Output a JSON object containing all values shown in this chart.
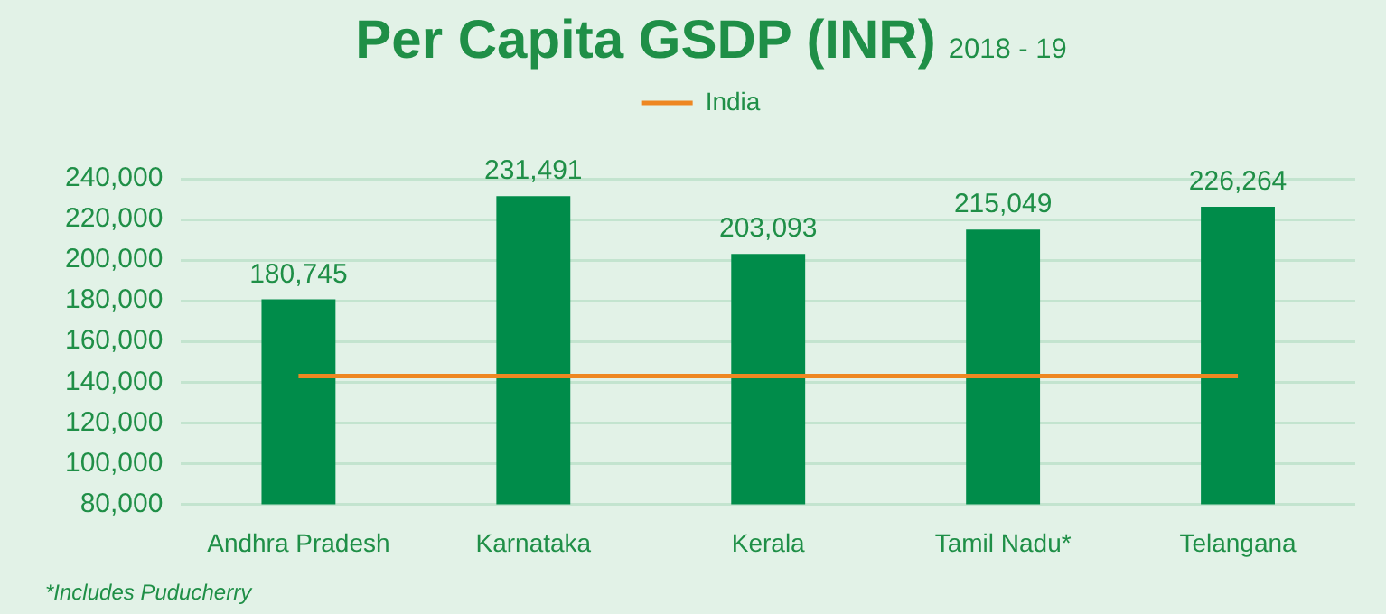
{
  "chart_data": {
    "type": "bar",
    "title": "Per Capita GSDP (INR)",
    "subtitle": "2018 - 19",
    "categories": [
      "Andhra Pradesh",
      "Karnataka",
      "Kerala",
      "Tamil Nadu*",
      "Telangana"
    ],
    "series": [
      {
        "color": "#008c4a",
        "values": [
          180745,
          231491,
          203093,
          215049,
          226264
        ],
        "value_labels": [
          "180,745",
          "231,491",
          "203,093",
          "215,049",
          "226,264"
        ]
      },
      {
        "type": "line",
        "name": "India",
        "color": "#ee8722",
        "values": [
          143000,
          143000,
          143000,
          143000,
          143000
        ]
      }
    ],
    "ylim": [
      80000,
      240000
    ],
    "yticks": [
      {
        "value": 80000,
        "label": "80,000"
      },
      {
        "value": 100000,
        "label": "100,000"
      },
      {
        "value": 120000,
        "label": "120,000"
      },
      {
        "value": 140000,
        "label": "140,000"
      },
      {
        "value": 160000,
        "label": "160,000"
      },
      {
        "value": 180000,
        "label": "180,000"
      },
      {
        "value": 200000,
        "label": "200,000"
      },
      {
        "value": 220000,
        "label": "220,000"
      },
      {
        "value": 240000,
        "label": "240,000"
      }
    ],
    "grid": "y",
    "legend": "top",
    "annotations": [
      "*Includes Puducherry"
    ]
  }
}
